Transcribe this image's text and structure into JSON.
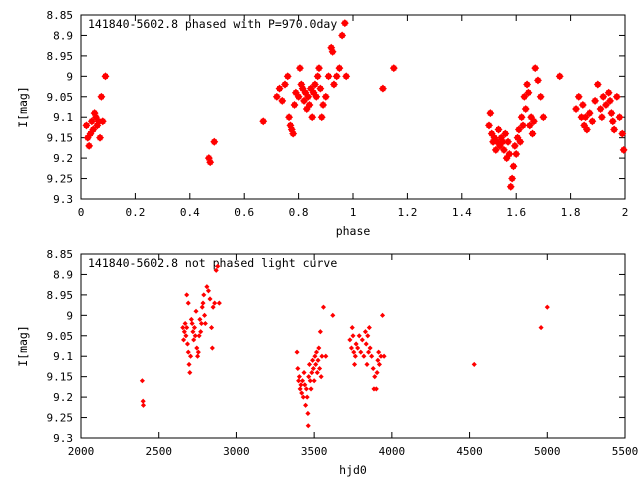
{
  "chart_data": [
    {
      "type": "scatter",
      "title": "141840-5602.8 phased with P=970.0day",
      "xlabel": "phase",
      "ylabel": "I[mag]",
      "xlim": [
        0,
        2
      ],
      "ylim": [
        8.85,
        9.3
      ],
      "y_inverted": true,
      "x_ticks": [
        "0",
        "0.2",
        "0.4",
        "0.6",
        "0.8",
        "1",
        "1.2",
        "1.4",
        "1.6",
        "1.8",
        "2"
      ],
      "y_ticks": [
        "8.85",
        "8.9",
        "8.95",
        "9",
        "9.05",
        "9.1",
        "9.15",
        "9.2",
        "9.25",
        "9.3"
      ],
      "grid": false,
      "marker_color": "#ff0000",
      "points": [
        [
          0.02,
          9.12
        ],
        [
          0.025,
          9.15
        ],
        [
          0.03,
          9.17
        ],
        [
          0.035,
          9.14
        ],
        [
          0.04,
          9.11
        ],
        [
          0.045,
          9.13
        ],
        [
          0.05,
          9.09
        ],
        [
          0.055,
          9.1
        ],
        [
          0.06,
          9.12
        ],
        [
          0.065,
          9.11
        ],
        [
          0.07,
          9.15
        ],
        [
          0.075,
          9.05
        ],
        [
          0.08,
          9.11
        ],
        [
          0.09,
          9.0
        ],
        [
          0.47,
          9.2
        ],
        [
          0.475,
          9.21
        ],
        [
          0.49,
          9.16
        ],
        [
          0.67,
          9.11
        ],
        [
          0.72,
          9.05
        ],
        [
          0.73,
          9.03
        ],
        [
          0.74,
          9.06
        ],
        [
          0.75,
          9.02
        ],
        [
          0.76,
          9.0
        ],
        [
          0.765,
          9.1
        ],
        [
          0.77,
          9.12
        ],
        [
          0.775,
          9.13
        ],
        [
          0.78,
          9.14
        ],
        [
          0.785,
          9.07
        ],
        [
          0.79,
          9.04
        ],
        [
          0.8,
          9.05
        ],
        [
          0.805,
          8.98
        ],
        [
          0.81,
          9.02
        ],
        [
          0.815,
          9.03
        ],
        [
          0.82,
          9.06
        ],
        [
          0.825,
          9.04
        ],
        [
          0.83,
          9.08
        ],
        [
          0.835,
          9.05
        ],
        [
          0.84,
          9.07
        ],
        [
          0.845,
          9.03
        ],
        [
          0.85,
          9.1
        ],
        [
          0.855,
          9.04
        ],
        [
          0.86,
          9.02
        ],
        [
          0.865,
          9.05
        ],
        [
          0.87,
          9.0
        ],
        [
          0.875,
          8.98
        ],
        [
          0.88,
          9.03
        ],
        [
          0.885,
          9.1
        ],
        [
          0.89,
          9.07
        ],
        [
          0.9,
          9.05
        ],
        [
          0.91,
          9.0
        ],
        [
          0.92,
          8.93
        ],
        [
          0.925,
          8.94
        ],
        [
          0.93,
          9.02
        ],
        [
          0.94,
          9.0
        ],
        [
          0.95,
          8.98
        ],
        [
          0.96,
          8.9
        ],
        [
          0.97,
          8.87
        ],
        [
          0.975,
          9.0
        ],
        [
          1.11,
          9.03
        ],
        [
          1.15,
          8.98
        ],
        [
          1.5,
          9.12
        ],
        [
          1.505,
          9.09
        ],
        [
          1.51,
          9.14
        ],
        [
          1.515,
          9.16
        ],
        [
          1.52,
          9.15
        ],
        [
          1.525,
          9.18
        ],
        [
          1.53,
          9.16
        ],
        [
          1.535,
          9.13
        ],
        [
          1.54,
          9.17
        ],
        [
          1.545,
          9.15
        ],
        [
          1.55,
          9.16
        ],
        [
          1.555,
          9.18
        ],
        [
          1.56,
          9.14
        ],
        [
          1.565,
          9.2
        ],
        [
          1.57,
          9.16
        ],
        [
          1.575,
          9.19
        ],
        [
          1.58,
          9.27
        ],
        [
          1.585,
          9.25
        ],
        [
          1.59,
          9.22
        ],
        [
          1.595,
          9.17
        ],
        [
          1.6,
          9.19
        ],
        [
          1.605,
          9.15
        ],
        [
          1.61,
          9.13
        ],
        [
          1.615,
          9.16
        ],
        [
          1.62,
          9.1
        ],
        [
          1.625,
          9.12
        ],
        [
          1.63,
          9.05
        ],
        [
          1.635,
          9.08
        ],
        [
          1.64,
          9.02
        ],
        [
          1.645,
          9.04
        ],
        [
          1.65,
          9.12
        ],
        [
          1.655,
          9.1
        ],
        [
          1.66,
          9.14
        ],
        [
          1.665,
          9.11
        ],
        [
          1.67,
          8.98
        ],
        [
          1.68,
          9.01
        ],
        [
          1.69,
          9.05
        ],
        [
          1.7,
          9.1
        ],
        [
          1.76,
          9.0
        ],
        [
          1.82,
          9.08
        ],
        [
          1.83,
          9.05
        ],
        [
          1.84,
          9.1
        ],
        [
          1.845,
          9.07
        ],
        [
          1.85,
          9.12
        ],
        [
          1.855,
          9.1
        ],
        [
          1.86,
          9.13
        ],
        [
          1.87,
          9.09
        ],
        [
          1.88,
          9.11
        ],
        [
          1.89,
          9.06
        ],
        [
          1.9,
          9.02
        ],
        [
          1.91,
          9.08
        ],
        [
          1.915,
          9.1
        ],
        [
          1.92,
          9.05
        ],
        [
          1.93,
          9.07
        ],
        [
          1.94,
          9.04
        ],
        [
          1.945,
          9.06
        ],
        [
          1.95,
          9.09
        ],
        [
          1.955,
          9.11
        ],
        [
          1.96,
          9.13
        ],
        [
          1.97,
          9.05
        ],
        [
          1.98,
          9.1
        ],
        [
          1.99,
          9.14
        ],
        [
          1.995,
          9.18
        ]
      ]
    },
    {
      "type": "scatter",
      "title": "141840-5602.8 not phased light curve",
      "xlabel": "hjd0",
      "ylabel": "I[mag]",
      "xlim": [
        2000,
        5500
      ],
      "ylim": [
        8.85,
        9.3
      ],
      "y_inverted": true,
      "x_ticks": [
        "2000",
        "2500",
        "3000",
        "3500",
        "4000",
        "4500",
        "5000",
        "5500"
      ],
      "y_ticks": [
        "8.85",
        "8.9",
        "8.95",
        "9",
        "9.05",
        "9.1",
        "9.15",
        "9.2",
        "9.25",
        "9.3"
      ],
      "grid": false,
      "marker_color": "#ff0000",
      "points": [
        [
          2395,
          9.16
        ],
        [
          2400,
          9.21
        ],
        [
          2402,
          9.22
        ],
        [
          2655,
          9.03
        ],
        [
          2660,
          9.06
        ],
        [
          2665,
          9.04
        ],
        [
          2670,
          9.02
        ],
        [
          2675,
          9.05
        ],
        [
          2680,
          9.03
        ],
        [
          2685,
          9.07
        ],
        [
          2690,
          9.09
        ],
        [
          2695,
          9.12
        ],
        [
          2700,
          9.14
        ],
        [
          2705,
          9.1
        ],
        [
          2710,
          9.01
        ],
        [
          2715,
          9.02
        ],
        [
          2720,
          9.04
        ],
        [
          2725,
          9.06
        ],
        [
          2730,
          9.03
        ],
        [
          2735,
          9.05
        ],
        [
          2740,
          8.99
        ],
        [
          2745,
          9.08
        ],
        [
          2750,
          9.1
        ],
        [
          2755,
          9.09
        ],
        [
          2760,
          9.05
        ],
        [
          2765,
          9.01
        ],
        [
          2770,
          9.04
        ],
        [
          2775,
          9.02
        ],
        [
          2780,
          8.98
        ],
        [
          2785,
          8.97
        ],
        [
          2790,
          8.95
        ],
        [
          2795,
          9.0
        ],
        [
          2800,
          9.02
        ],
        [
          2810,
          8.93
        ],
        [
          2820,
          8.94
        ],
        [
          2830,
          8.96
        ],
        [
          2840,
          9.03
        ],
        [
          2845,
          9.08
        ],
        [
          2850,
          8.98
        ],
        [
          2860,
          8.97
        ],
        [
          2870,
          8.89
        ],
        [
          2880,
          8.88
        ],
        [
          2890,
          8.97
        ],
        [
          2680,
          8.95
        ],
        [
          2690,
          8.97
        ],
        [
          3390,
          9.09
        ],
        [
          3395,
          9.13
        ],
        [
          3400,
          9.16
        ],
        [
          3405,
          9.15
        ],
        [
          3410,
          9.18
        ],
        [
          3415,
          9.17
        ],
        [
          3420,
          9.19
        ],
        [
          3425,
          9.16
        ],
        [
          3430,
          9.2
        ],
        [
          3435,
          9.14
        ],
        [
          3440,
          9.17
        ],
        [
          3445,
          9.22
        ],
        [
          3450,
          9.18
        ],
        [
          3455,
          9.2
        ],
        [
          3460,
          9.24
        ],
        [
          3462,
          9.27
        ],
        [
          3465,
          9.15
        ],
        [
          3470,
          9.12
        ],
        [
          3475,
          9.16
        ],
        [
          3480,
          9.18
        ],
        [
          3485,
          9.14
        ],
        [
          3490,
          9.11
        ],
        [
          3495,
          9.13
        ],
        [
          3500,
          9.16
        ],
        [
          3505,
          9.1
        ],
        [
          3510,
          9.12
        ],
        [
          3515,
          9.09
        ],
        [
          3520,
          9.14
        ],
        [
          3525,
          9.11
        ],
        [
          3530,
          9.08
        ],
        [
          3535,
          9.13
        ],
        [
          3540,
          9.04
        ],
        [
          3545,
          9.15
        ],
        [
          3550,
          9.1
        ],
        [
          3560,
          8.98
        ],
        [
          3575,
          9.1
        ],
        [
          3620,
          9.0
        ],
        [
          3730,
          9.06
        ],
        [
          3740,
          9.08
        ],
        [
          3745,
          9.03
        ],
        [
          3750,
          9.05
        ],
        [
          3755,
          9.09
        ],
        [
          3760,
          9.12
        ],
        [
          3765,
          9.1
        ],
        [
          3770,
          9.07
        ],
        [
          3780,
          9.08
        ],
        [
          3790,
          9.05
        ],
        [
          3800,
          9.09
        ],
        [
          3810,
          9.06
        ],
        [
          3820,
          9.1
        ],
        [
          3830,
          9.04
        ],
        [
          3835,
          9.07
        ],
        [
          3840,
          9.12
        ],
        [
          3845,
          9.05
        ],
        [
          3850,
          9.09
        ],
        [
          3855,
          9.03
        ],
        [
          3860,
          9.08
        ],
        [
          3870,
          9.1
        ],
        [
          3880,
          9.13
        ],
        [
          3885,
          9.18
        ],
        [
          3890,
          9.15
        ],
        [
          3900,
          9.18
        ],
        [
          3905,
          9.14
        ],
        [
          3910,
          9.11
        ],
        [
          3915,
          9.09
        ],
        [
          3920,
          9.12
        ],
        [
          3930,
          9.1
        ],
        [
          3940,
          9.0
        ],
        [
          3950,
          9.1
        ],
        [
          4530,
          9.12
        ],
        [
          4960,
          9.03
        ],
        [
          5000,
          8.98
        ]
      ]
    }
  ]
}
